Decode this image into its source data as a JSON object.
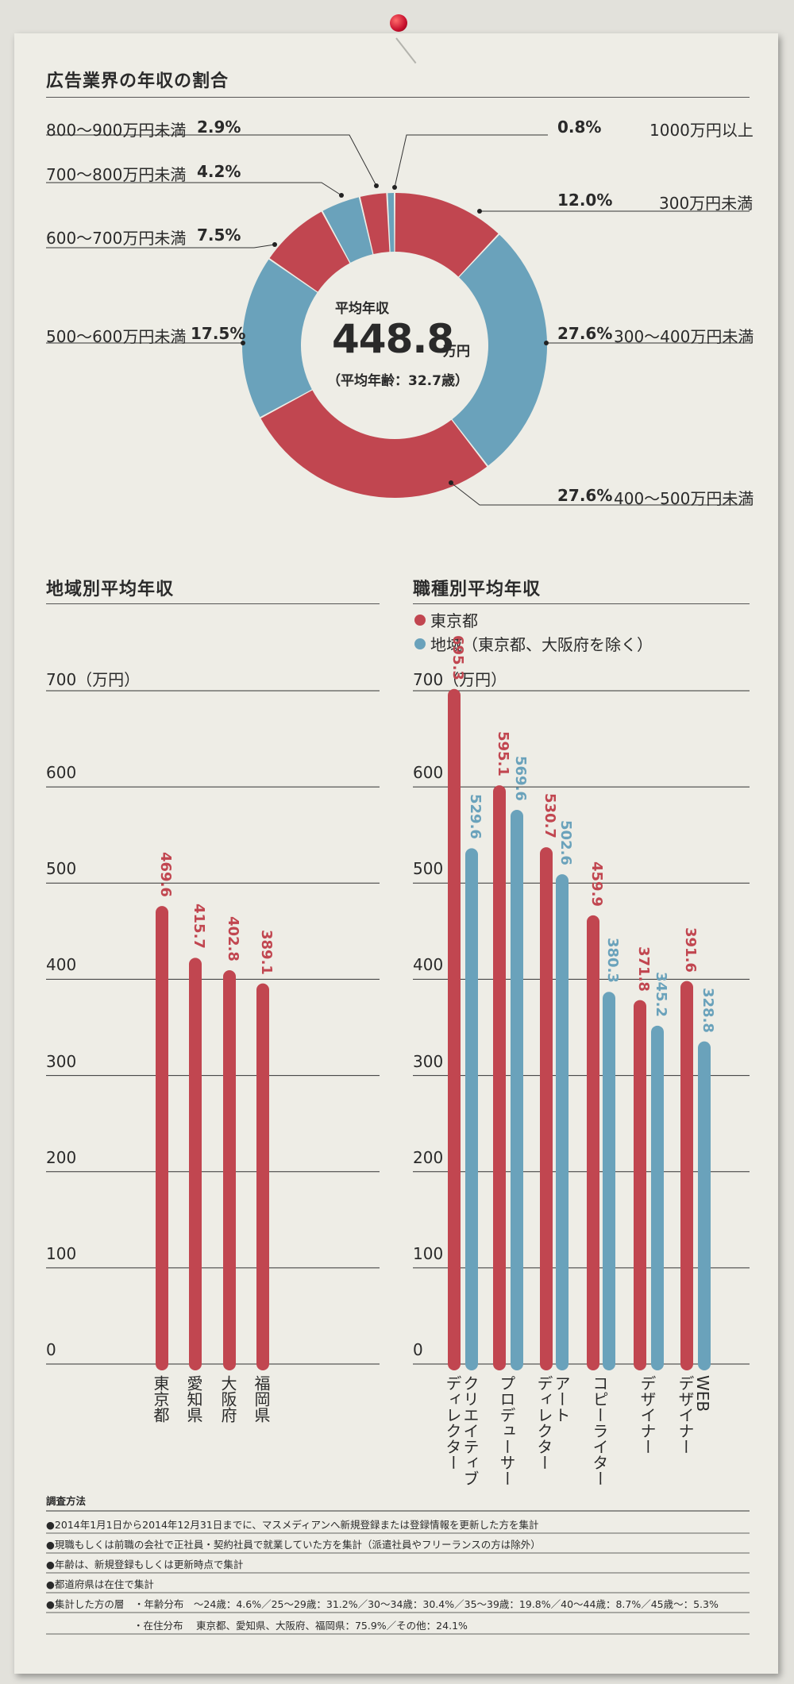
{
  "colors": {
    "red": "#c14650",
    "blue": "#6aa2bb"
  },
  "donut": {
    "title": "広告業界の年収の割合",
    "center_label": "平均年収",
    "center_value": "448.8",
    "center_unit": "万円",
    "center_sub": "（平均年齢：32.7歳）",
    "segments": [
      {
        "label": "300万円未満",
        "pct": "12.0%",
        "value": 12.0,
        "color": "red"
      },
      {
        "label": "300〜400万円未満",
        "pct": "27.6%",
        "value": 27.6,
        "color": "blue"
      },
      {
        "label": "400〜500万円未満",
        "pct": "27.6%",
        "value": 27.6,
        "color": "red"
      },
      {
        "label": "500〜600万円未満",
        "pct": "17.5%",
        "value": 17.5,
        "color": "blue"
      },
      {
        "label": "600〜700万円未満",
        "pct": "7.5%",
        "value": 7.5,
        "color": "red"
      },
      {
        "label": "700〜800万円未満",
        "pct": "4.2%",
        "value": 4.2,
        "color": "blue"
      },
      {
        "label": "800〜900万円未満",
        "pct": "2.9%",
        "value": 2.9,
        "color": "red"
      },
      {
        "label": "1000万円以上",
        "pct": "0.8%",
        "value": 0.8,
        "color": "blue"
      }
    ]
  },
  "region_chart": {
    "title": "地域別平均年収",
    "unit_label": "700（万円）",
    "ticks": [
      "0",
      "100",
      "200",
      "300",
      "400",
      "500",
      "600"
    ]
  },
  "job_chart": {
    "title": "職種別平均年収",
    "legend": [
      "東京都",
      "地域（東京都、大阪府を除く）"
    ],
    "unit_label": "700（万円）",
    "ticks": [
      "0",
      "100",
      "200",
      "300",
      "400",
      "500",
      "600"
    ]
  },
  "chart_data": [
    {
      "type": "pie",
      "title": "広告業界の年収の割合",
      "categories": [
        "300万円未満",
        "300〜400万円未満",
        "400〜500万円未満",
        "500〜600万円未満",
        "600〜700万円未満",
        "700〜800万円未満",
        "800〜900万円未満",
        "1000万円以上"
      ],
      "values": [
        12.0,
        27.6,
        27.6,
        17.5,
        7.5,
        4.2,
        2.9,
        0.8
      ]
    },
    {
      "type": "bar",
      "title": "地域別平均年収",
      "categories": [
        "東京都",
        "愛知県",
        "大阪府",
        "福岡県"
      ],
      "values": [
        469.6,
        415.7,
        402.8,
        389.1
      ],
      "value_labels": [
        "469.6",
        "415.7",
        "402.8",
        "389.1"
      ],
      "ylim": [
        0,
        700
      ]
    },
    {
      "type": "bar",
      "title": "職種別平均年収",
      "categories": [
        "クリエイティブディレクター",
        "プロデューサー",
        "アートディレクター",
        "コピーライター",
        "デザイナー",
        "WEBデザイナー"
      ],
      "series": [
        {
          "name": "東京都",
          "values": [
            695.3,
            595.1,
            530.7,
            459.9,
            371.8,
            391.6
          ],
          "value_labels": [
            "695.3",
            "595.1",
            "530.7",
            "459.9",
            "371.8",
            "391.6"
          ]
        },
        {
          "name": "地域（東京都、大阪府を除く）",
          "values": [
            529.6,
            569.6,
            502.6,
            380.3,
            345.2,
            328.8
          ],
          "value_labels": [
            "529.6",
            "569.6",
            "502.6",
            "380.3",
            "345.2",
            "328.8"
          ]
        }
      ],
      "ylim": [
        0,
        700
      ]
    }
  ],
  "region_labels": [
    "東京都",
    "愛知県",
    "大阪府",
    "福岡県"
  ],
  "job_labels": [
    [
      "クリエイティブ",
      "ディレクター"
    ],
    [
      "プロデューサー"
    ],
    [
      "アート",
      "ディレクター"
    ],
    [
      "コピーライター"
    ],
    [
      "デザイナー"
    ],
    [
      "WEB",
      "デザイナー"
    ]
  ],
  "notes": {
    "title": "調査方法",
    "lines": [
      "●2014年1月1日から2014年12月31日までに、マスメディアンへ新規登録または登録情報を更新した方を集計",
      "●現職もしくは前職の会社で正社員・契約社員で就業していた方を集計（派遣社員やフリーランスの方は除外）",
      "●年齢は、新規登録もしくは更新時点で集計",
      "●都道府県は在住で集計",
      "●集計した方の層　・年齢分布　〜24歳：4.6%／25〜29歳：31.2%／30〜34歳：30.4%／35〜39歳：19.8%／40〜44歳：8.7%／45歳〜：5.3%",
      "・在住分布　 東京都、愛知県、大阪府、福岡県：75.9%／その他：24.1%"
    ]
  }
}
